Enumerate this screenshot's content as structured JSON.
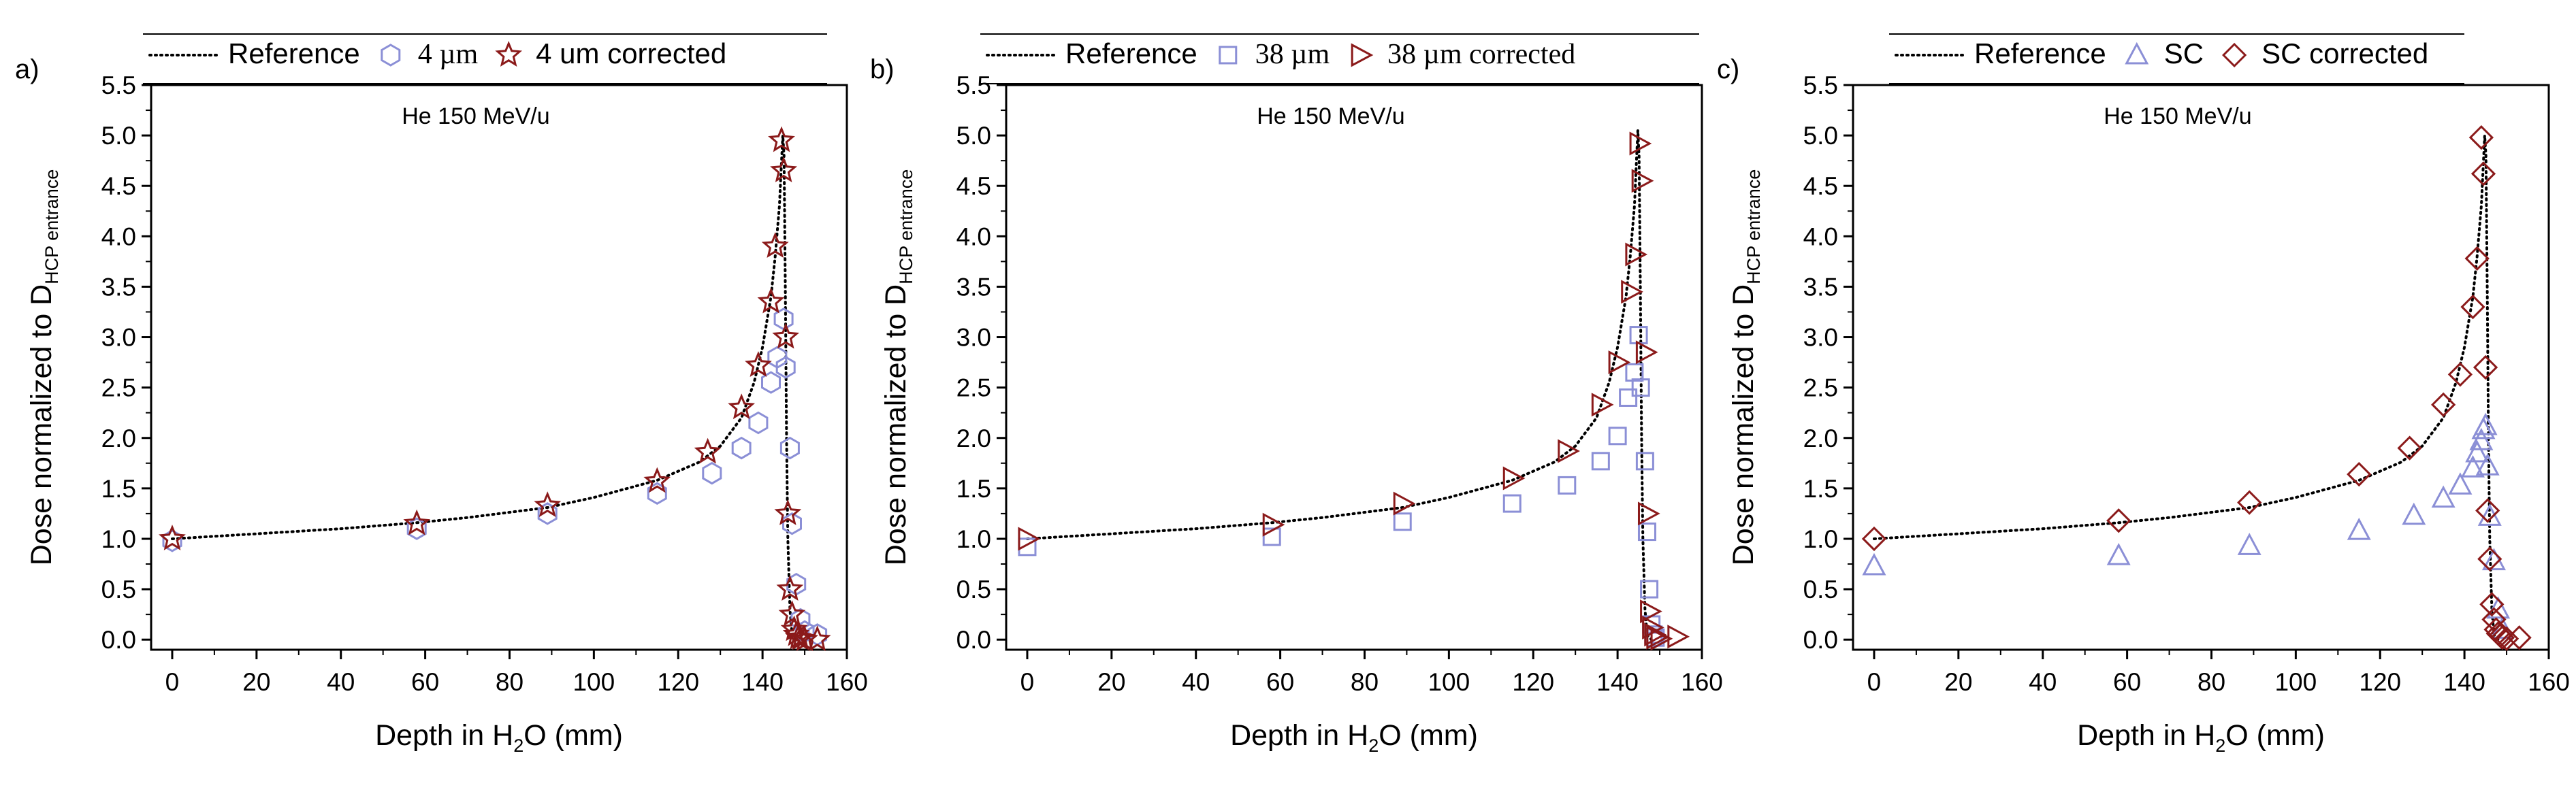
{
  "chart_data": [
    {
      "type": "scatter",
      "panel_label": "a)",
      "annotation": "He 150 MeV/u",
      "xlabel_pre": "Depth in H",
      "xlabel_sub": "2",
      "xlabel_post": "O (mm)",
      "ylabel_pre": "Dose normalized to D",
      "ylabel_sub": "HCP entrance",
      "xlim": [
        -5,
        160
      ],
      "ylim": [
        -0.1,
        5.5
      ],
      "xticks": [
        0,
        20,
        40,
        60,
        80,
        100,
        120,
        140,
        160
      ],
      "yticks": [
        0.0,
        0.5,
        1.0,
        1.5,
        2.0,
        2.5,
        3.0,
        3.5,
        4.0,
        4.5,
        5.0,
        5.5
      ],
      "legend": [
        "Reference",
        "4 µm",
        "4 um corrected"
      ],
      "series": [
        {
          "name": "Reference",
          "style": "dotted-line",
          "color": "#000000",
          "x": [
            0,
            20,
            40,
            58,
            70,
            89,
            100,
            115,
            125,
            130,
            135,
            138,
            140,
            142,
            143,
            144,
            144.8,
            145.1,
            145.4,
            145.7,
            146,
            146.5,
            147,
            148
          ],
          "y": [
            1.0,
            1.05,
            1.1,
            1.16,
            1.21,
            1.31,
            1.41,
            1.58,
            1.76,
            1.92,
            2.2,
            2.55,
            2.9,
            3.4,
            3.8,
            4.3,
            5.0,
            4.8,
            3.5,
            2.0,
            1.0,
            0.3,
            0.05,
            0.0
          ]
        },
        {
          "name": "4 µm",
          "marker": "hexagon",
          "color": "#8b8fd6",
          "x": [
            0,
            58,
            89,
            115,
            128,
            135,
            139,
            142,
            143.5,
            145,
            145.5,
            146.5,
            147,
            148,
            149,
            150,
            153
          ],
          "y": [
            0.98,
            1.1,
            1.25,
            1.45,
            1.65,
            1.9,
            2.15,
            2.55,
            2.8,
            3.18,
            2.7,
            1.9,
            1.15,
            0.55,
            0.2,
            0.08,
            0.05
          ]
        },
        {
          "name": "4 um corrected",
          "marker": "star",
          "color": "#8b1a1a",
          "x": [
            0,
            58,
            89,
            115,
            127,
            135,
            139,
            142,
            143,
            144.5,
            145,
            145.5,
            146,
            146.5,
            147,
            147.5,
            148,
            148.5,
            149,
            150,
            153
          ],
          "y": [
            1.0,
            1.15,
            1.33,
            1.57,
            1.86,
            2.3,
            2.72,
            3.35,
            3.9,
            4.95,
            4.65,
            3.0,
            1.25,
            0.5,
            0.25,
            0.1,
            0.05,
            0.02,
            0.01,
            0.0,
            0.0
          ]
        }
      ]
    },
    {
      "type": "scatter",
      "panel_label": "b)",
      "annotation": "He 150 MeV/u",
      "xlabel_pre": "Depth in H",
      "xlabel_sub": "2",
      "xlabel_post": "O (mm)",
      "ylabel_pre": "Dose normalized to D",
      "ylabel_sub": "HCP entrance",
      "xlim": [
        -5,
        160
      ],
      "ylim": [
        -0.1,
        5.5
      ],
      "xticks": [
        0,
        20,
        40,
        60,
        80,
        100,
        120,
        140,
        160
      ],
      "yticks": [
        0.0,
        0.5,
        1.0,
        1.5,
        2.0,
        2.5,
        3.0,
        3.5,
        4.0,
        4.5,
        5.0,
        5.5
      ],
      "legend": [
        "Reference",
        "38 µm",
        "38 µm corrected"
      ],
      "series": [
        {
          "name": "Reference",
          "style": "dotted-line",
          "color": "#000000",
          "x": [
            0,
            20,
            40,
            58,
            70,
            89,
            100,
            115,
            125,
            130,
            135,
            138,
            140,
            142,
            143,
            144,
            144.8,
            145.1,
            145.4,
            145.7,
            146,
            146.5,
            147,
            148
          ],
          "y": [
            1.0,
            1.05,
            1.1,
            1.16,
            1.21,
            1.31,
            1.41,
            1.58,
            1.76,
            1.92,
            2.2,
            2.55,
            2.9,
            3.4,
            3.8,
            4.3,
            5.05,
            4.8,
            3.5,
            2.0,
            1.0,
            0.3,
            0.05,
            0.0
          ]
        },
        {
          "name": "38 µm",
          "marker": "square",
          "color": "#8b8fd6",
          "x": [
            0,
            58,
            89,
            115,
            128,
            136,
            140,
            142.5,
            144,
            145,
            145.5,
            146.5,
            147,
            147.5,
            148,
            148.5,
            149
          ],
          "y": [
            0.92,
            1.02,
            1.17,
            1.35,
            1.53,
            1.77,
            2.02,
            2.4,
            2.65,
            3.02,
            2.5,
            1.77,
            1.07,
            0.5,
            0.15,
            0.05,
            0.02
          ]
        },
        {
          "name": "38 µm corrected",
          "marker": "triangle-right",
          "color": "#8b1a1a",
          "x": [
            0,
            58,
            89,
            115,
            128,
            136,
            140,
            143,
            144,
            145,
            145.5,
            146.5,
            147,
            147.5,
            148,
            148.5,
            149,
            150,
            154
          ],
          "y": [
            1.0,
            1.14,
            1.35,
            1.6,
            1.87,
            2.33,
            2.75,
            3.45,
            3.82,
            4.92,
            4.55,
            2.85,
            1.25,
            0.28,
            0.12,
            0.05,
            0.02,
            0.01,
            0.03
          ]
        }
      ]
    },
    {
      "type": "scatter",
      "panel_label": "c)",
      "annotation": "He 150 MeV/u",
      "xlabel_pre": "Depth in H",
      "xlabel_sub": "2",
      "xlabel_post": "O (mm)",
      "ylabel_pre": "Dose normalized to D",
      "ylabel_sub": "HCP entrance",
      "xlim": [
        -5,
        160
      ],
      "ylim": [
        -0.1,
        5.5
      ],
      "xticks": [
        0,
        20,
        40,
        60,
        80,
        100,
        120,
        140,
        160
      ],
      "yticks": [
        0.0,
        0.5,
        1.0,
        1.5,
        2.0,
        2.5,
        3.0,
        3.5,
        4.0,
        4.5,
        5.0,
        5.5
      ],
      "legend": [
        "Reference",
        "SC",
        "SC corrected"
      ],
      "series": [
        {
          "name": "Reference",
          "style": "dotted-line",
          "color": "#000000",
          "x": [
            0,
            20,
            40,
            58,
            70,
            89,
            100,
            115,
            125,
            130,
            135,
            138,
            140,
            142,
            143,
            144,
            144.8,
            145.1,
            145.4,
            145.7,
            146,
            146.5,
            147,
            148
          ],
          "y": [
            1.0,
            1.05,
            1.1,
            1.16,
            1.21,
            1.31,
            1.41,
            1.58,
            1.76,
            1.92,
            2.2,
            2.55,
            2.9,
            3.4,
            3.8,
            4.3,
            5.0,
            4.8,
            3.5,
            2.0,
            1.0,
            0.3,
            0.05,
            0.0
          ]
        },
        {
          "name": "SC",
          "marker": "triangle-up",
          "color": "#8b8fd6",
          "x": [
            0,
            58,
            89,
            115,
            128,
            135,
            139,
            142,
            143,
            144,
            144.5,
            145,
            145.5,
            146,
            147,
            148,
            149
          ],
          "y": [
            0.73,
            0.83,
            0.93,
            1.08,
            1.23,
            1.4,
            1.53,
            1.7,
            1.85,
            1.97,
            2.08,
            2.12,
            1.72,
            1.22,
            0.78,
            0.3,
            0.1
          ]
        },
        {
          "name": "SC corrected",
          "marker": "diamond",
          "color": "#8b1a1a",
          "x": [
            0,
            58,
            89,
            115,
            127,
            135,
            139,
            142,
            143,
            144,
            144.5,
            145,
            145.5,
            146,
            146.5,
            147,
            147.5,
            148,
            148.5,
            149,
            150,
            153
          ],
          "y": [
            1.0,
            1.18,
            1.36,
            1.64,
            1.9,
            2.33,
            2.63,
            3.3,
            3.78,
            4.98,
            4.62,
            2.7,
            1.28,
            0.8,
            0.35,
            0.2,
            0.1,
            0.06,
            0.04,
            0.02,
            0.01,
            0.02
          ]
        }
      ]
    }
  ]
}
